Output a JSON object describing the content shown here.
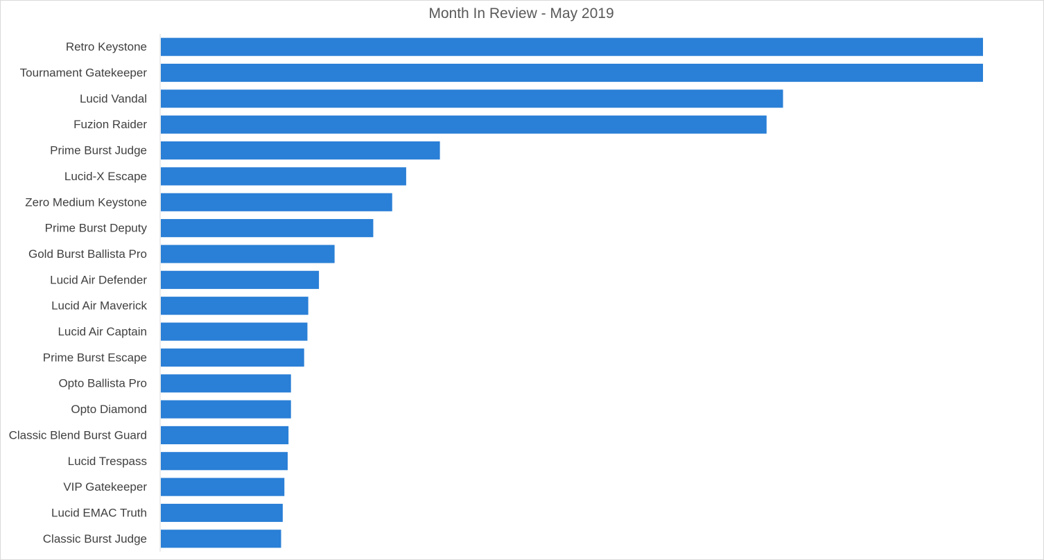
{
  "chart_data": {
    "type": "bar",
    "orientation": "horizontal",
    "title": "Month In Review - May 2019",
    "xlabel": "",
    "ylabel": "",
    "categories": [
      "Retro Keystone",
      "Tournament Gatekeeper",
      "Lucid Vandal",
      "Fuzion Raider",
      "Prime Burst Judge",
      "Lucid-X Escape",
      "Zero Medium Keystone",
      "Prime Burst Deputy",
      "Gold Burst Ballista Pro",
      "Lucid Air Defender",
      "Lucid Air Maverick",
      "Lucid Air Captain",
      "Prime Burst Escape",
      "Opto Ballista Pro",
      "Opto Diamond",
      "Classic Blend Burst Guard",
      "Lucid Trespass",
      "VIP Gatekeeper",
      "Lucid EMAC Truth",
      "Classic Burst Judge"
    ],
    "values": [
      100,
      100,
      75.7,
      73.7,
      34.0,
      29.9,
      28.2,
      25.9,
      21.2,
      19.3,
      18.0,
      17.9,
      17.5,
      15.9,
      15.9,
      15.6,
      15.5,
      15.1,
      14.9,
      14.7
    ],
    "xlim": [
      0,
      100
    ],
    "grid": false,
    "legend": "none",
    "bar_color": "#2a7fd6"
  }
}
